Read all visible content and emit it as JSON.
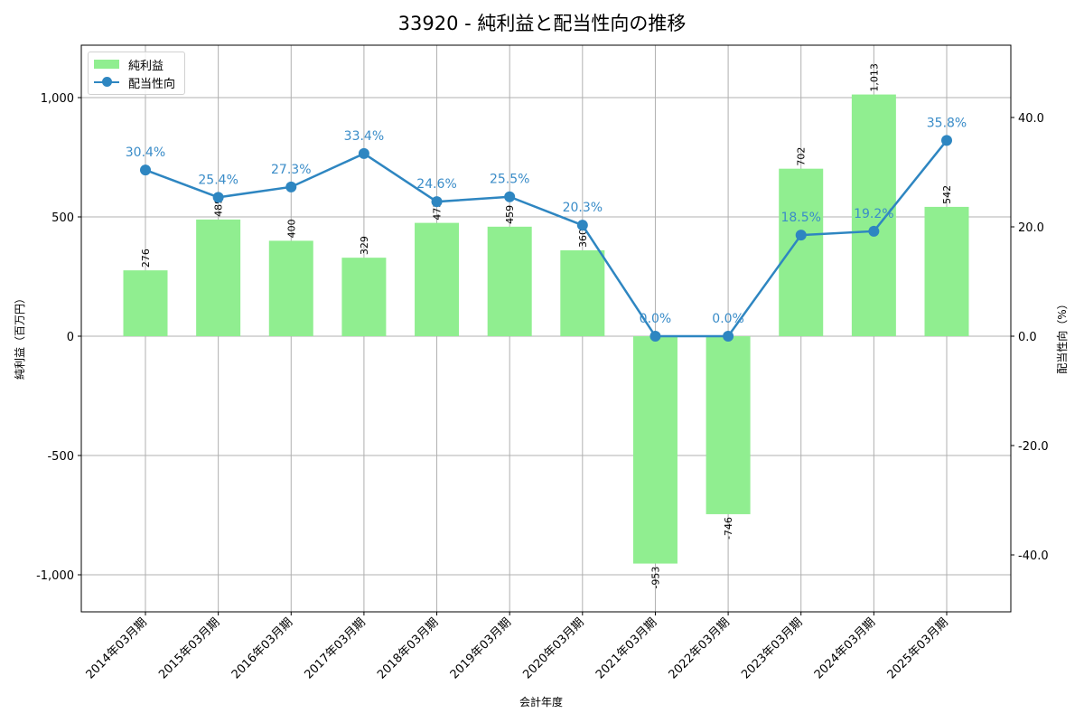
{
  "title": "33920 - 純利益と配当性向の推移",
  "legend": {
    "bar_label": "純利益",
    "line_label": "配当性向"
  },
  "axes": {
    "xlabel": "会計年度",
    "ylabel_left": "純利益（百万円）",
    "ylabel_right": "配当性向（%）",
    "left_ticks": [
      "1,000",
      "500",
      "0",
      "-500",
      "-1,000"
    ],
    "right_ticks": [
      "40.0",
      "20.0",
      "0.0",
      "-20.0",
      "-40.0"
    ]
  },
  "colors": {
    "bar": "#90ee90",
    "line": "#2e86c1",
    "grid": "#b0b0b0"
  },
  "chart_data": {
    "type": "bar+line",
    "title": "33920 - 純利益と配当性向の推移",
    "xlabel": "会計年度",
    "ylabel": "純利益（百万円）",
    "ylabel_right": "配当性向（%）",
    "categories": [
      "2014年03月期",
      "2015年03月期",
      "2016年03月期",
      "2017年03月期",
      "2018年03月期",
      "2019年03月期",
      "2020年03月期",
      "2021年03月期",
      "2022年03月期",
      "2023年03月期",
      "2024年03月期",
      "2025年03月期"
    ],
    "series": [
      {
        "name": "純利益",
        "type": "bar",
        "axis": "left",
        "values": [
          276,
          489,
          400,
          329,
          475,
          459,
          360,
          -953,
          -746,
          702,
          1013,
          542
        ],
        "labels": [
          "276",
          "489",
          "400",
          "329",
          "475",
          "459",
          "360",
          "-953",
          "-746",
          "702",
          "1,013",
          "542"
        ]
      },
      {
        "name": "配当性向",
        "type": "line",
        "axis": "right",
        "values": [
          30.4,
          25.4,
          27.3,
          33.4,
          24.6,
          25.5,
          20.3,
          0.0,
          0.0,
          18.5,
          19.2,
          35.8
        ],
        "labels": [
          "30.4%",
          "25.4%",
          "27.3%",
          "33.4%",
          "24.6%",
          "25.5%",
          "20.3%",
          "0.0%",
          "0.0%",
          "18.5%",
          "19.2%",
          "35.8%"
        ]
      }
    ],
    "ylim": [
      -1150,
      1200
    ],
    "ylim_right": [
      -50.5,
      52.5
    ],
    "grid": true,
    "legend_position": "upper left"
  }
}
